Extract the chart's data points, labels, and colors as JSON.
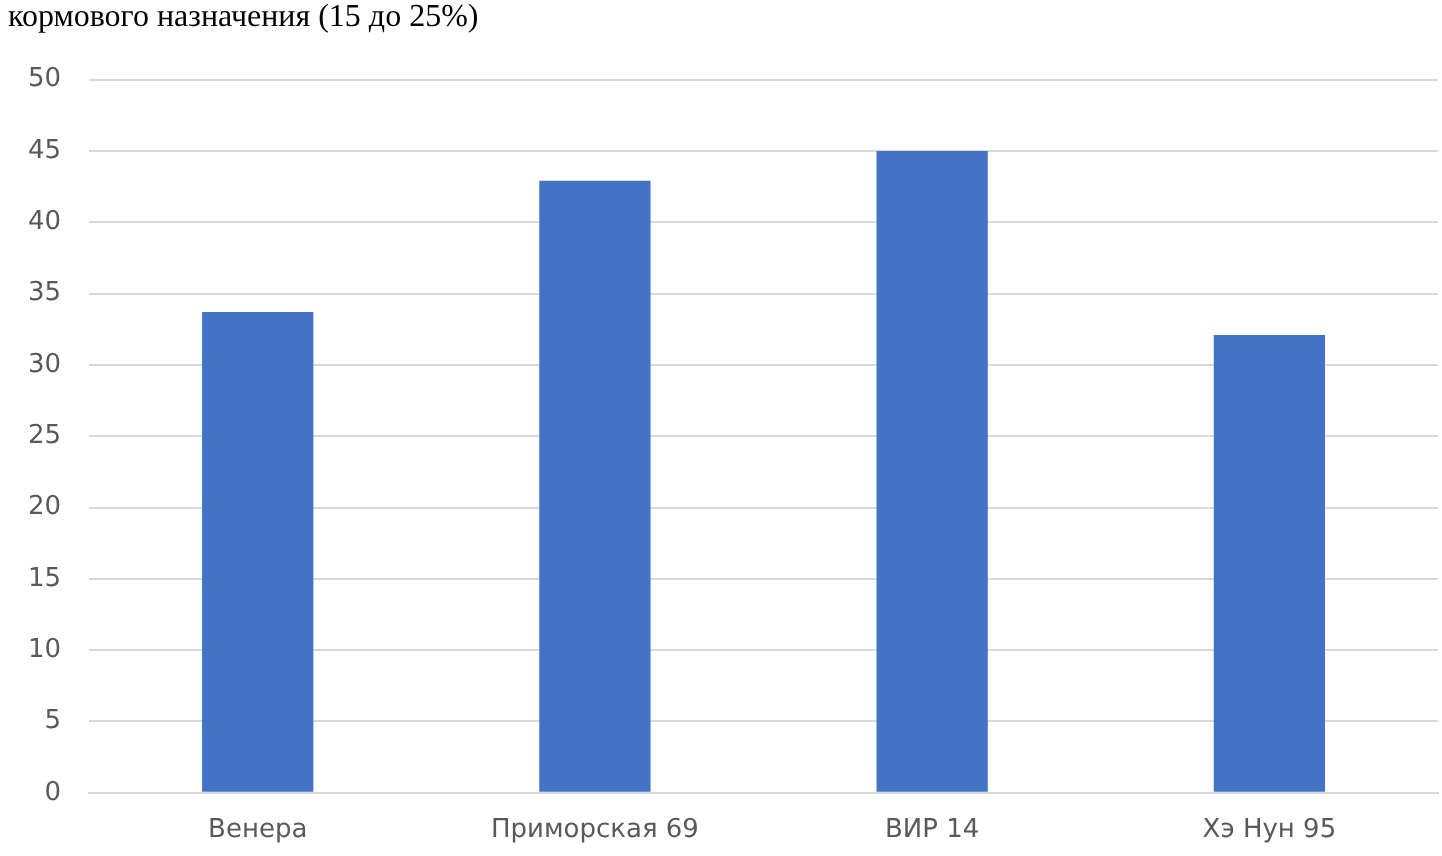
{
  "chart_data": {
    "type": "bar",
    "title": "кормового назначения (15 до 25%)",
    "categories": [
      "Венера",
      "Приморская 69",
      "ВИР 14",
      "Хэ Нун 95"
    ],
    "values": [
      33.7,
      42.9,
      45,
      32.1
    ],
    "color": "#4472c4",
    "ylim": [
      0,
      50
    ],
    "yticks": [
      0,
      5,
      10,
      15,
      20,
      25,
      30,
      35,
      40,
      45,
      50
    ],
    "grid": "y",
    "legend": false
  }
}
